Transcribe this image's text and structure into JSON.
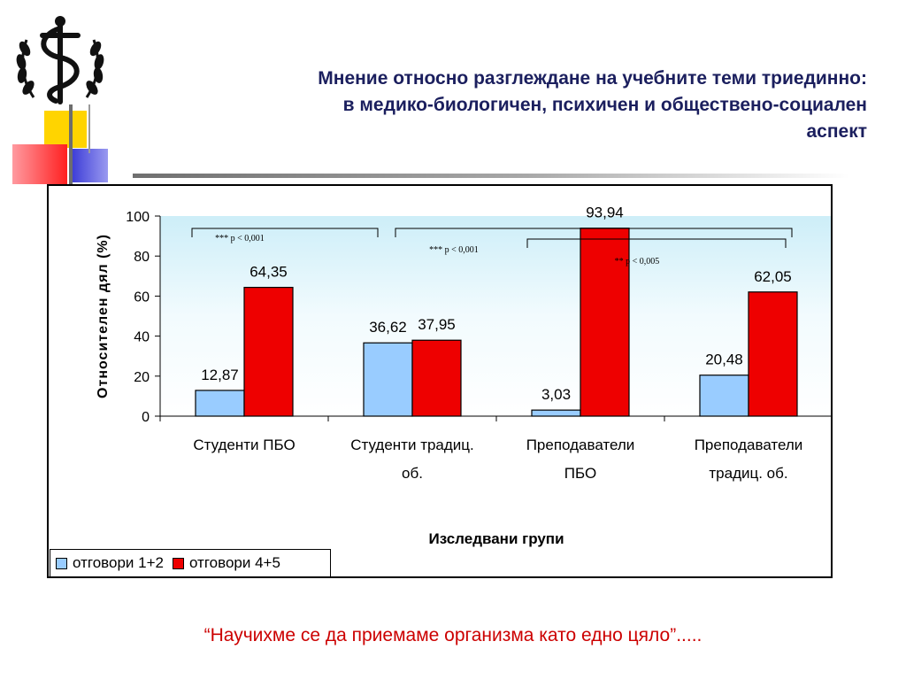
{
  "slide": {
    "title_lines": [
      "Мнение относно разглеждане на учебните теми триединно:",
      "в медико-биологичен, психичен и обществено-социален",
      "аспект"
    ],
    "quote": "“Научихме се да приемаме организма като едно цяло”.....",
    "colors": {
      "title": "#1b1f5e",
      "quote": "#cc0000",
      "deco_yellow": "#ffd400",
      "deco_blue": "#3a3ad6",
      "deco_red": "#ff2020"
    }
  },
  "chart_data": {
    "type": "bar",
    "title": "",
    "xlabel": "Изследвани групи",
    "ylabel": "Относителен дял (%)",
    "ylim": [
      0,
      100
    ],
    "yticks": [
      "0",
      "20",
      "40",
      "60",
      "80",
      "100"
    ],
    "categories": [
      [
        "Студенти ПБО"
      ],
      [
        "Студенти традиц.",
        "об."
      ],
      [
        "Преподаватели",
        "ПБО"
      ],
      [
        "Преподаватели",
        "традиц. об."
      ]
    ],
    "series": [
      {
        "name": "отговори 1+2",
        "color": "#99ccff",
        "values": [
          12.87,
          36.62,
          3.03,
          20.48
        ],
        "labels": [
          "12,87",
          "36,62",
          "3,03",
          "20,48"
        ]
      },
      {
        "name": "отговори 4+5",
        "color": "#ee0000",
        "values": [
          64.35,
          37.95,
          93.94,
          62.05
        ],
        "labels": [
          "64,35",
          "37,95",
          "93,94",
          "62,05"
        ]
      }
    ],
    "annotations": [
      "*** p < 0,001",
      "*** p < 0,001",
      "** p < 0,005"
    ],
    "plot_background": "#dff4fb",
    "grid": false,
    "legend_position": "bottom-left"
  }
}
